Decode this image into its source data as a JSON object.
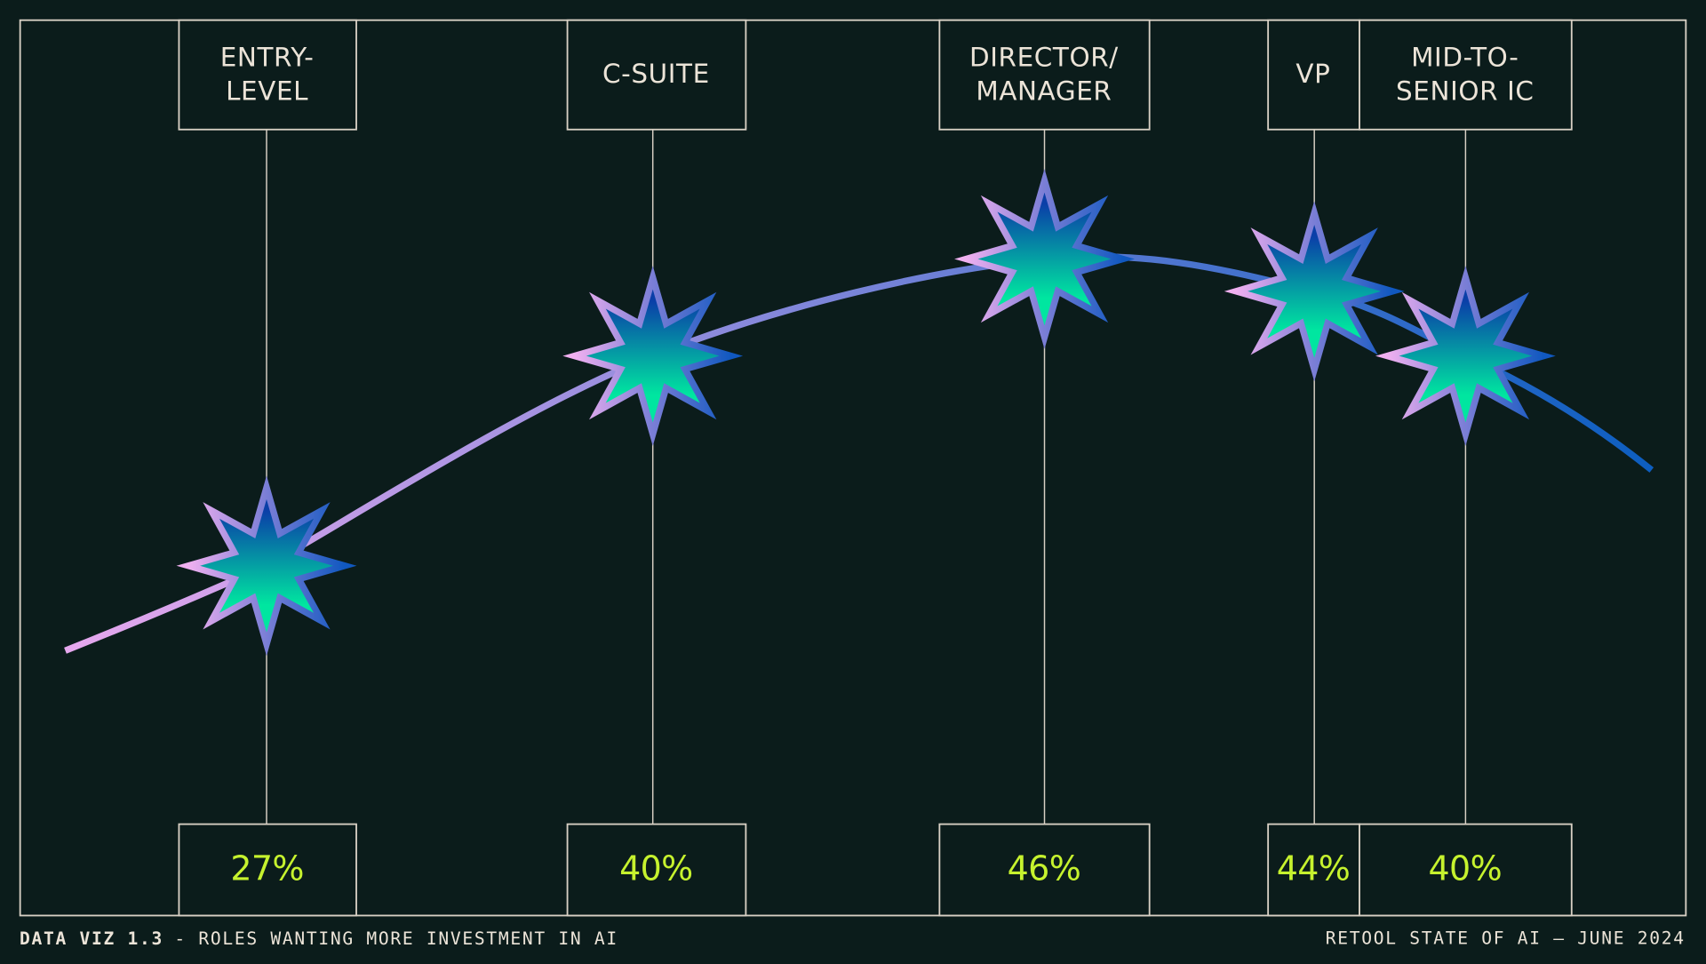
{
  "chart_data": {
    "type": "line",
    "categories": [
      "ENTRY-\nLEVEL",
      "C-SUITE",
      "DIRECTOR/\nMANAGER",
      "VP",
      "MID-TO-\nSENIOR IC"
    ],
    "values": [
      27,
      40,
      46,
      44,
      40
    ],
    "value_labels": [
      "27%",
      "40%",
      "46%",
      "44%",
      "40%"
    ],
    "footer_left_bold": "DATA VIZ 1.3",
    "footer_left": "- ROLES WANTING MORE INVESTMENT IN AI",
    "footer_right": "RETOOL STATE OF AI — JUNE 2024"
  }
}
